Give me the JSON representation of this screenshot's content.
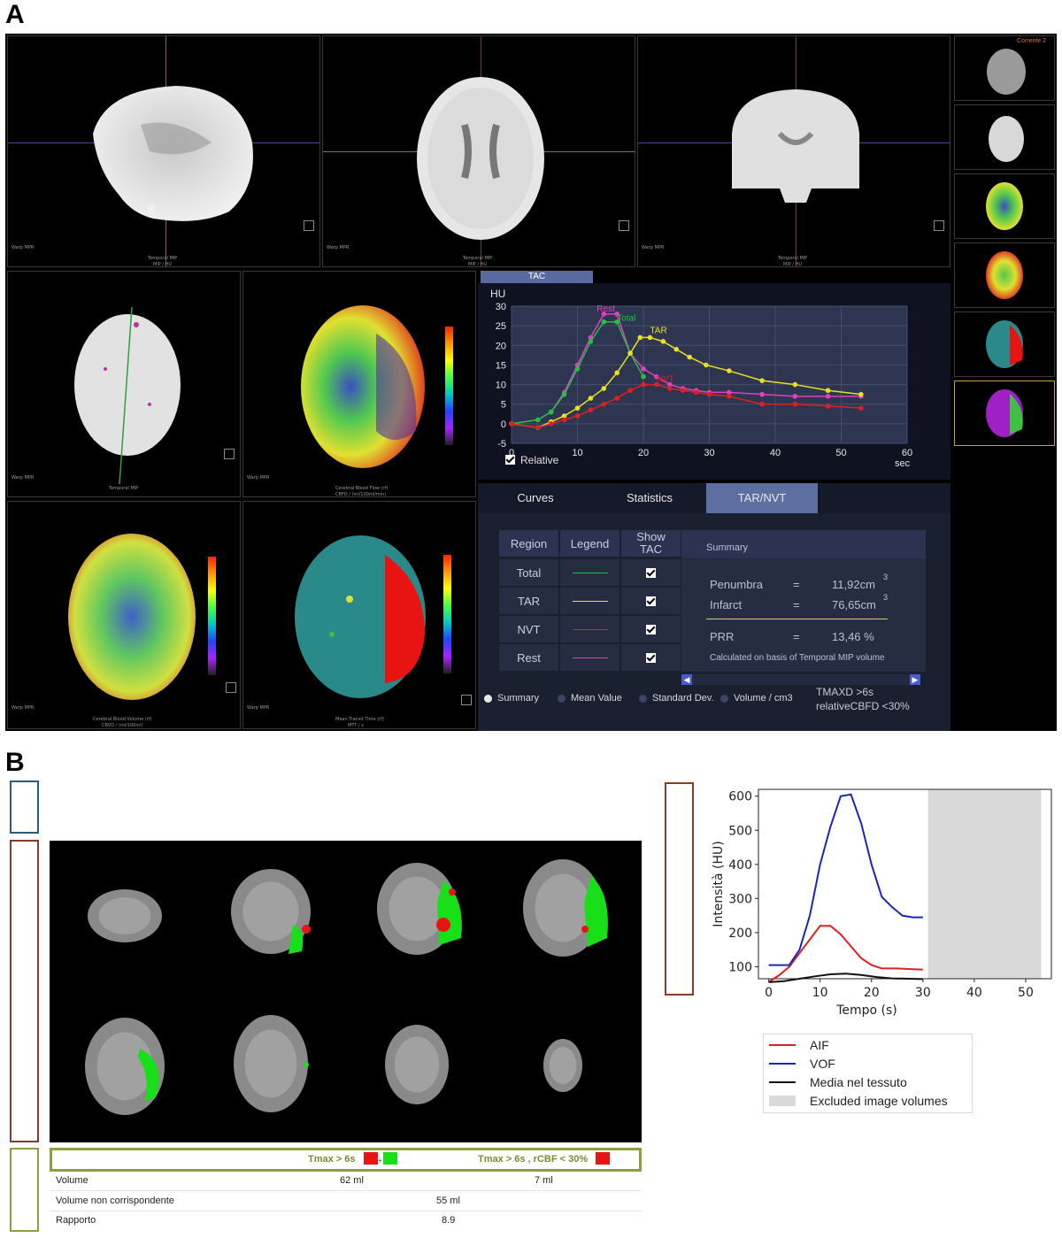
{
  "panels": {
    "a": "A",
    "b": "B"
  },
  "viewport_text": {
    "mpr": "Warp MPR",
    "temporal_mip": "Temporal MIP",
    "mip_hu": "MIP / HU",
    "cbf": "Cerebral Blood Flow (rf)",
    "cbf_unit": "CBFD / (ml/100ml/min)",
    "cbv": "Cerebral Blood Volume (rf)",
    "cbv_unit": "CBVD / (ml/100ml)",
    "mtt": "Mean Transit Time (rf)",
    "mtt_unit": "MTT / s",
    "corrente": "Corrente 2"
  },
  "tac": {
    "tab_label": "TAC",
    "relative_label": "Relative",
    "relative_checked": true
  },
  "chart_data": [
    {
      "type": "line",
      "title": "",
      "ylabel": "HU",
      "xlabel": "sec",
      "xlim": [
        0,
        60
      ],
      "ylim": [
        -5,
        30
      ],
      "xticks": [
        0,
        10,
        20,
        30,
        40,
        50,
        60
      ],
      "yticks": [
        -5,
        0,
        5,
        10,
        15,
        20,
        25,
        30
      ],
      "grid": true,
      "series": [
        {
          "name": "Rest",
          "color": "#e040c0",
          "x": [
            0,
            4,
            6,
            8,
            10,
            12,
            14,
            16,
            18,
            20,
            22,
            24,
            26,
            28,
            30,
            33,
            38,
            43,
            48,
            53
          ],
          "y": [
            0,
            1,
            3,
            8,
            15,
            22,
            28,
            28,
            18,
            14,
            12,
            10,
            9,
            8.5,
            8,
            8,
            7.5,
            7,
            7,
            7
          ]
        },
        {
          "name": "Total",
          "color": "#20c040",
          "x": [
            0,
            4,
            6,
            8,
            10,
            12,
            14,
            16,
            18,
            20
          ],
          "y": [
            0,
            1,
            3,
            7.5,
            14,
            21,
            26,
            26,
            18,
            12
          ]
        },
        {
          "name": "TAR",
          "color": "#e8e020",
          "x": [
            0,
            4,
            6,
            8,
            10,
            12,
            14,
            16,
            18,
            19.5,
            21,
            23,
            25,
            27,
            29.5,
            33,
            38,
            43,
            48,
            53
          ],
          "y": [
            0,
            -1,
            0.5,
            2,
            4,
            6.5,
            9,
            13,
            18,
            22,
            22,
            21,
            19,
            17,
            15,
            13.5,
            11,
            10,
            8.5,
            7.5
          ]
        },
        {
          "name": "NVT",
          "color": "#e02020",
          "x": [
            0,
            4,
            6,
            8,
            10,
            12,
            14,
            16,
            18,
            20,
            22,
            24,
            26,
            28,
            30,
            33,
            38,
            43,
            48,
            53
          ],
          "y": [
            0,
            -1,
            0,
            1,
            2,
            3.5,
            5,
            6.5,
            8.5,
            10,
            10,
            9,
            8.5,
            8,
            7.5,
            7,
            5,
            5,
            4.5,
            4
          ]
        }
      ]
    },
    {
      "type": "line",
      "title": "",
      "xlabel": "Tempo (s)",
      "ylabel": "Intensità (HU)",
      "xlim": [
        -2,
        55
      ],
      "ylim": [
        65,
        620
      ],
      "xticks": [
        0,
        10,
        20,
        30,
        40,
        50
      ],
      "yticks": [
        100,
        200,
        300,
        400,
        500,
        600
      ],
      "excluded_range": [
        31,
        53
      ],
      "series": [
        {
          "name": "AIF",
          "color": "#e02020",
          "x": [
            0,
            2,
            4,
            6,
            8,
            10,
            12,
            14,
            16,
            18,
            20,
            22,
            25,
            28,
            30
          ],
          "y": [
            55,
            75,
            100,
            140,
            180,
            220,
            220,
            195,
            160,
            125,
            105,
            95,
            95,
            93,
            92
          ]
        },
        {
          "name": "VOF",
          "color": "#1a24c0",
          "x": [
            0,
            2,
            4,
            6,
            8,
            10,
            12,
            14,
            16,
            18,
            20,
            22,
            24,
            26,
            28,
            30
          ],
          "y": [
            105,
            105,
            105,
            150,
            250,
            400,
            510,
            600,
            605,
            520,
            400,
            305,
            275,
            250,
            245,
            245
          ]
        },
        {
          "name": "Media nel tessuto",
          "color": "#111111",
          "x": [
            0,
            3,
            6,
            9,
            12,
            15,
            18,
            21,
            24,
            27,
            30
          ],
          "y": [
            55,
            58,
            65,
            72,
            78,
            80,
            76,
            70,
            66,
            65,
            64
          ]
        }
      ]
    }
  ],
  "tar_nvt": {
    "tabs": [
      "Curves",
      "Statistics",
      "TAR/NVT"
    ],
    "active_tab": "TAR/NVT",
    "headers": [
      "Region",
      "Legend",
      "Show TAC"
    ],
    "rows": [
      {
        "region": "Total",
        "color": "#20c040",
        "show": true
      },
      {
        "region": "TAR",
        "color": "#e8e020",
        "show": true
      },
      {
        "region": "NVT",
        "color": "#e02020",
        "show": true
      },
      {
        "region": "Rest",
        "color": "#e040c0",
        "show": true
      }
    ],
    "summary_header": "Summary",
    "penumbra_label": "Penumbra",
    "penumbra_value": "11,92cm",
    "infarct_label": "Infarct",
    "infarct_value": "76,65cm",
    "unit_exp": "3",
    "equals": "=",
    "prr_label": "PRR",
    "prr_value": "13,46 %",
    "calc_note": "Calculated on basis of Temporal MIP volume",
    "radios": [
      "Summary",
      "Mean Value",
      "Standard Dev.",
      "Volume / cm3"
    ],
    "radio_selected": "Summary",
    "thresholds": [
      "TMAXD >6s",
      "relativeCBFD <30%"
    ]
  },
  "b_table": {
    "col1_header": "Tmax > 6s",
    "col2_header": "Tmax > 6s , rCBF < 30%",
    "rows": [
      {
        "label": "Volume",
        "v1": "62 ml",
        "v2": "7 ml"
      },
      {
        "label": "Volume non corrispondente",
        "v": "55 ml"
      },
      {
        "label": "Rapporto",
        "v": "8.9"
      }
    ],
    "colors": {
      "red": "#e81414",
      "green": "#18e018"
    }
  },
  "b_legend": [
    {
      "label": "AIF",
      "color": "#e02020"
    },
    {
      "label": "VOF",
      "color": "#1a24c0"
    },
    {
      "label": "Media nel tessuto",
      "color": "#111111"
    },
    {
      "label": "Excluded image volumes",
      "color": "#d9d9d9"
    }
  ]
}
